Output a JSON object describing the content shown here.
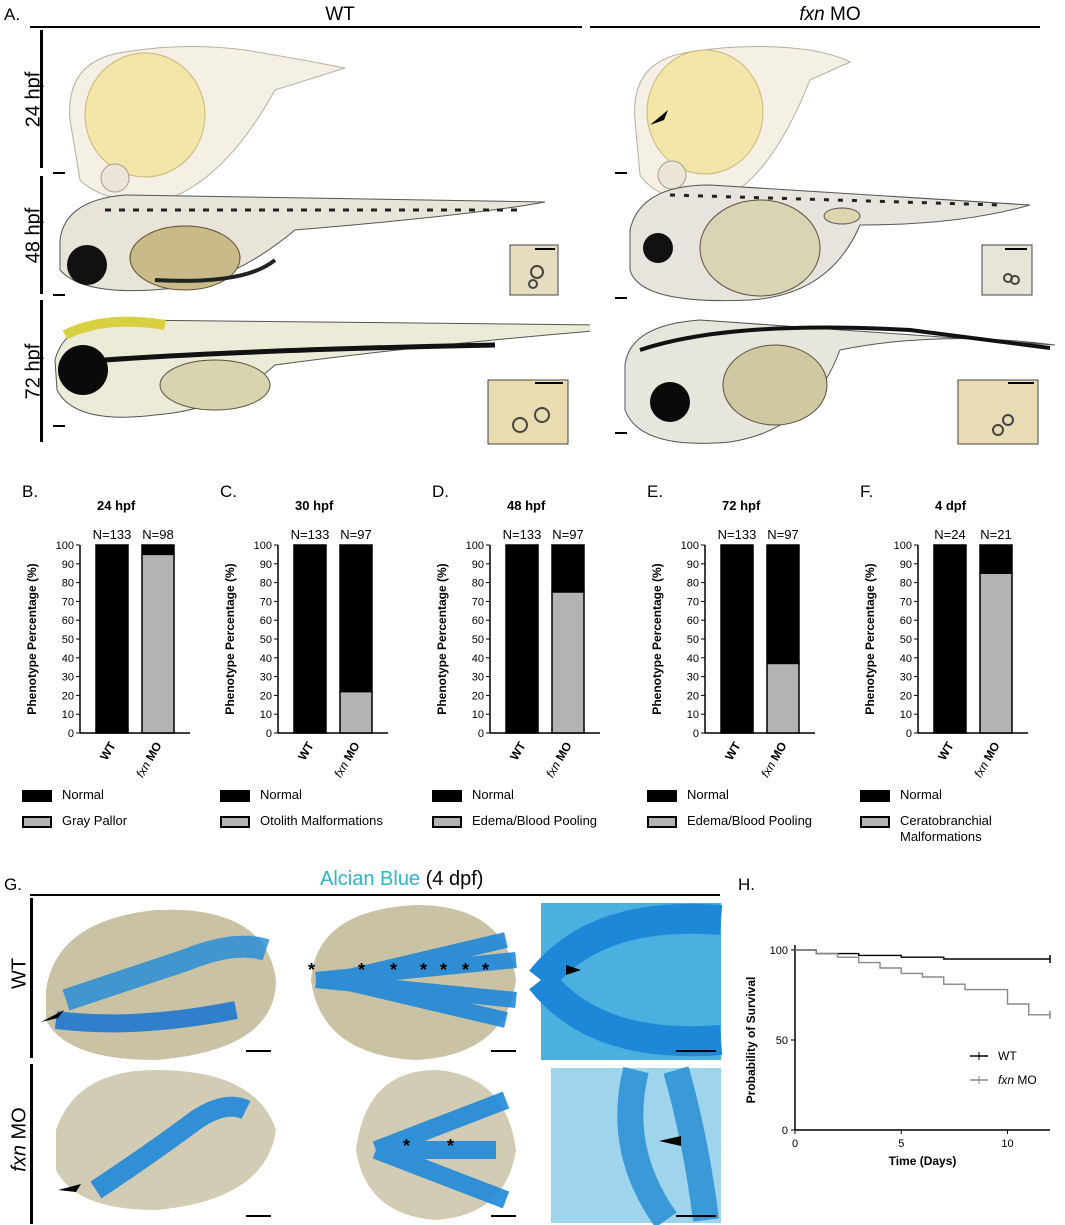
{
  "panel_a": {
    "label": "A.",
    "conditions": {
      "wt": "WT",
      "mo_italic": "fxn",
      "mo_rest": " MO"
    },
    "rows": [
      "24 hpf",
      "48 hpf",
      "72 hpf"
    ]
  },
  "bar_charts": [
    {
      "label": "B.",
      "title": "24 hpf",
      "n_wt": "N=133",
      "n_mo": "N=98",
      "legend": [
        "Normal",
        "Gray Pallor"
      ]
    },
    {
      "label": "C.",
      "title": "30 hpf",
      "n_wt": "N=133",
      "n_mo": "N=97",
      "legend": [
        "Normal",
        "Otolith Malformations"
      ]
    },
    {
      "label": "D.",
      "title": "48 hpf",
      "n_wt": "N=133",
      "n_mo": "N=97",
      "legend": [
        "Normal",
        "Edema/Blood Pooling"
      ]
    },
    {
      "label": "E.",
      "title": "72 hpf",
      "n_wt": "N=133",
      "n_mo": "N=97",
      "legend": [
        "Normal",
        "Edema/Blood Pooling"
      ]
    },
    {
      "label": "F.",
      "title": "4 dpf",
      "n_wt": "N=24",
      "n_mo": "N=21",
      "legend": [
        "Normal",
        "Ceratobranchial",
        "Malformations"
      ]
    }
  ],
  "bar_common": {
    "ylabel": "Phenotype Percentage (%)",
    "xcat_wt": "WT",
    "xcat_mo_italic": "fxn",
    "xcat_mo_rest": " MO",
    "yticks": [
      "0",
      "10",
      "20",
      "30",
      "40",
      "50",
      "60",
      "70",
      "80",
      "90",
      "100"
    ]
  },
  "panel_g": {
    "label": "G.",
    "title_stain": "Alcian Blue",
    "title_rest": " (4 dpf)",
    "row_wt": "WT",
    "row_mo_italic": "fxn",
    "row_mo_rest": " MO",
    "star": "*",
    "stain_color": "#2bb5cf"
  },
  "panel_h": {
    "label": "H.",
    "ylabel": "Probability of Survival",
    "xlabel": "Time (Days)",
    "yticks": [
      "0",
      "50",
      "100"
    ],
    "xticks": [
      "0",
      "5",
      "10"
    ],
    "legend_wt": "WT",
    "legend_mo_italic": "fxn",
    "legend_mo_rest": " MO"
  },
  "chart_data": [
    {
      "type": "bar",
      "title": "24 hpf",
      "categories": [
        "WT",
        "fxn MO"
      ],
      "ylabel": "Phenotype Percentage (%)",
      "ylim": [
        0,
        100
      ],
      "series": [
        {
          "name": "Gray Pallor",
          "values": [
            0,
            95
          ]
        },
        {
          "name": "Normal",
          "values": [
            100,
            5
          ]
        }
      ]
    },
    {
      "type": "bar",
      "title": "30 hpf",
      "categories": [
        "WT",
        "fxn MO"
      ],
      "ylabel": "Phenotype Percentage (%)",
      "ylim": [
        0,
        100
      ],
      "series": [
        {
          "name": "Otolith Malformations",
          "values": [
            0,
            22
          ]
        },
        {
          "name": "Normal",
          "values": [
            100,
            78
          ]
        }
      ]
    },
    {
      "type": "bar",
      "title": "48 hpf",
      "categories": [
        "WT",
        "fxn MO"
      ],
      "ylabel": "Phenotype Percentage (%)",
      "ylim": [
        0,
        100
      ],
      "series": [
        {
          "name": "Edema/Blood Pooling",
          "values": [
            0,
            75
          ]
        },
        {
          "name": "Normal",
          "values": [
            100,
            25
          ]
        }
      ]
    },
    {
      "type": "bar",
      "title": "72 hpf",
      "categories": [
        "WT",
        "fxn MO"
      ],
      "ylabel": "Phenotype Percentage (%)",
      "ylim": [
        0,
        100
      ],
      "series": [
        {
          "name": "Edema/Blood Pooling",
          "values": [
            0,
            37
          ]
        },
        {
          "name": "Normal",
          "values": [
            100,
            63
          ]
        }
      ]
    },
    {
      "type": "bar",
      "title": "4 dpf",
      "categories": [
        "WT",
        "fxn MO"
      ],
      "ylabel": "Phenotype Percentage (%)",
      "ylim": [
        0,
        100
      ],
      "series": [
        {
          "name": "Ceratobranchial Malformations",
          "values": [
            0,
            85
          ]
        },
        {
          "name": "Normal",
          "values": [
            100,
            15
          ]
        }
      ]
    },
    {
      "type": "line",
      "xlabel": "Time (Days)",
      "ylabel": "Probability of Survival",
      "xlim": [
        0,
        12
      ],
      "ylim": [
        0,
        100
      ],
      "series": [
        {
          "name": "WT",
          "x": [
            0,
            1,
            1,
            3,
            3,
            5,
            5,
            7,
            7,
            12
          ],
          "y": [
            100,
            100,
            98,
            98,
            97,
            97,
            96,
            96,
            95,
            95
          ]
        },
        {
          "name": "fxn MO",
          "x": [
            0,
            1,
            1,
            2,
            2,
            3,
            3,
            4,
            4,
            5,
            5,
            6,
            6,
            7,
            7,
            8,
            8,
            10,
            10,
            11,
            11,
            12
          ],
          "y": [
            100,
            100,
            98,
            98,
            96,
            96,
            93,
            93,
            90,
            90,
            87,
            87,
            85,
            85,
            81,
            81,
            78,
            78,
            70,
            70,
            64,
            64
          ]
        }
      ]
    }
  ]
}
